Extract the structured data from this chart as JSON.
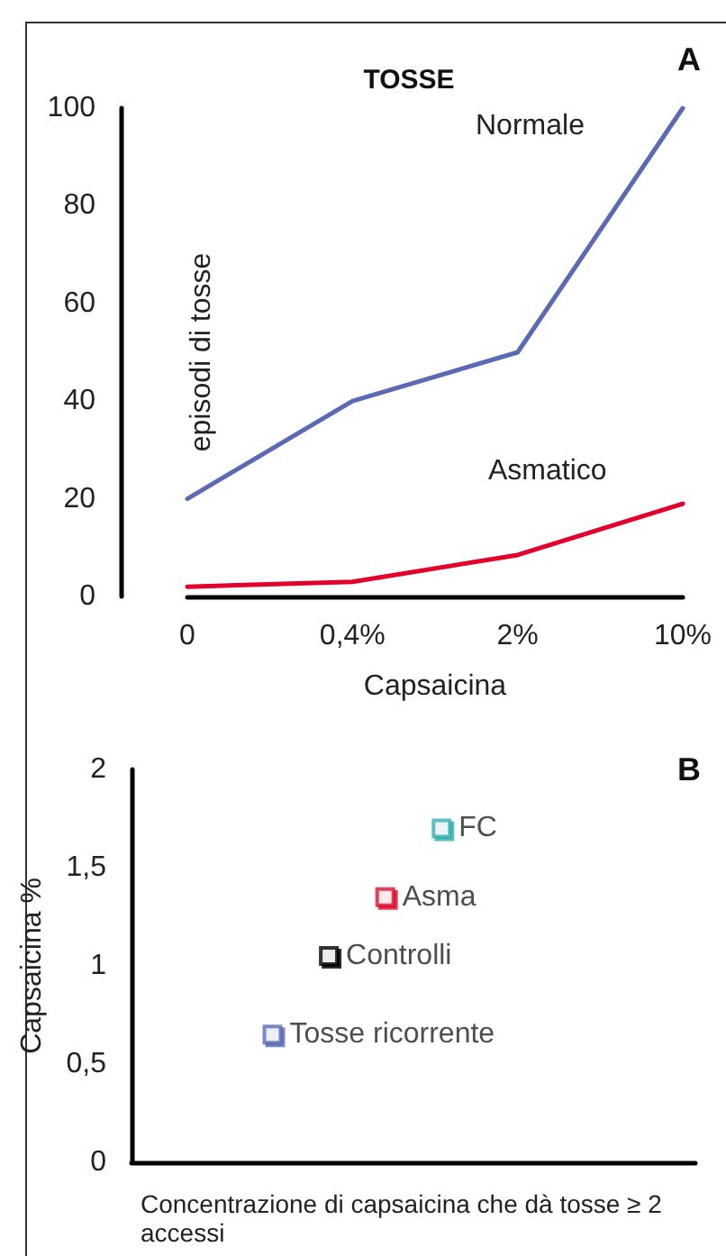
{
  "chart_data": [
    {
      "type": "line",
      "title": "TOSSE",
      "xlabel": "Capsaicina",
      "ylabel": "episodi di tosse",
      "annotations": [
        "A"
      ],
      "categories": [
        "0",
        "0,4%",
        "2%",
        "10%"
      ],
      "series": [
        {
          "name": "Normale",
          "color": "#5b6ab4",
          "values": [
            20,
            40,
            50,
            100
          ]
        },
        {
          "name": "Asmatico",
          "color": "#e3002b",
          "values": [
            2,
            3,
            8.5,
            19
          ]
        }
      ],
      "ylim": [
        0,
        100
      ],
      "yticks": [
        0,
        20,
        40,
        60,
        80,
        100
      ],
      "grid": false,
      "legend": false,
      "marker": "none",
      "line_style": "solid"
    },
    {
      "type": "scatter",
      "xlabel": "Concentrazione di capsaicina che dà tosse ≥ 2 accessi",
      "ylabel": "Capsaicina %",
      "annotations": [
        "B"
      ],
      "categories": [
        null,
        null,
        null,
        null,
        null,
        null,
        null,
        null,
        null,
        null
      ],
      "series": [
        {
          "name": "Tosse ricorrente",
          "color": "#5b6bb5",
          "values": [
            null,
            null,
            0.65,
            null,
            null,
            null,
            null,
            null,
            null,
            null
          ]
        },
        {
          "name": "Controlli",
          "color": "#000000",
          "values": [
            null,
            null,
            null,
            1.05,
            null,
            null,
            null,
            null,
            null,
            null
          ]
        },
        {
          "name": "Asma",
          "color": "#e0102f",
          "values": [
            null,
            null,
            null,
            null,
            1.35,
            null,
            null,
            null,
            null,
            null
          ]
        },
        {
          "name": "FC",
          "color": "#33b0b0",
          "values": [
            null,
            null,
            null,
            null,
            null,
            1.7,
            null,
            null,
            null,
            null
          ]
        }
      ],
      "ylim": [
        0,
        2
      ],
      "yticks": [
        0,
        {
          "value": 0.5,
          "label": "0,5"
        },
        1,
        {
          "value": 1.5,
          "label": "1,5"
        },
        2
      ],
      "grid": false,
      "legend": false,
      "marker": "square"
    }
  ]
}
